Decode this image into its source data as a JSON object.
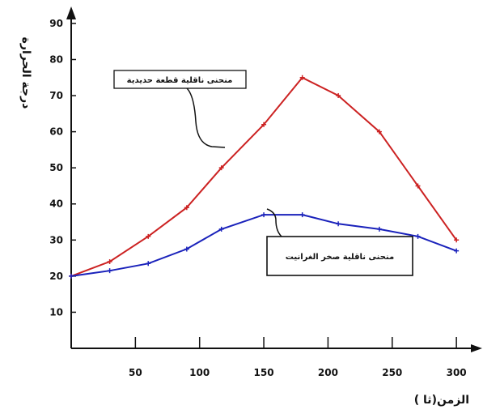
{
  "chart_data": {
    "type": "line",
    "xlabel": "الزمن(ثا )",
    "ylabel": "درجة الحرارة",
    "xlim": [
      0,
      310
    ],
    "ylim": [
      0,
      92
    ],
    "x_ticks": [
      50,
      100,
      150,
      200,
      250,
      300
    ],
    "y_ticks": [
      10,
      20,
      30,
      40,
      50,
      60,
      70,
      80,
      90
    ],
    "series": [
      {
        "name": "منحنى ناقلية قطعة حديدية",
        "color": "#cc2222",
        "points": [
          [
            0,
            20
          ],
          [
            30,
            24
          ],
          [
            60,
            31
          ],
          [
            90,
            39
          ],
          [
            117,
            50
          ],
          [
            150,
            62
          ],
          [
            180,
            75
          ],
          [
            208,
            70
          ],
          [
            240,
            60
          ],
          [
            270,
            45
          ],
          [
            300,
            30
          ]
        ]
      },
      {
        "name": "منحنى ناقلية صخر الغرانيت",
        "color": "#1a22bb",
        "points": [
          [
            0,
            20
          ],
          [
            30,
            21.5
          ],
          [
            60,
            23.5
          ],
          [
            90,
            27.5
          ],
          [
            117,
            33
          ],
          [
            150,
            37
          ],
          [
            180,
            37
          ],
          [
            208,
            34.5
          ],
          [
            240,
            33
          ],
          [
            270,
            31
          ],
          [
            300,
            27
          ]
        ]
      }
    ],
    "grid": false
  }
}
